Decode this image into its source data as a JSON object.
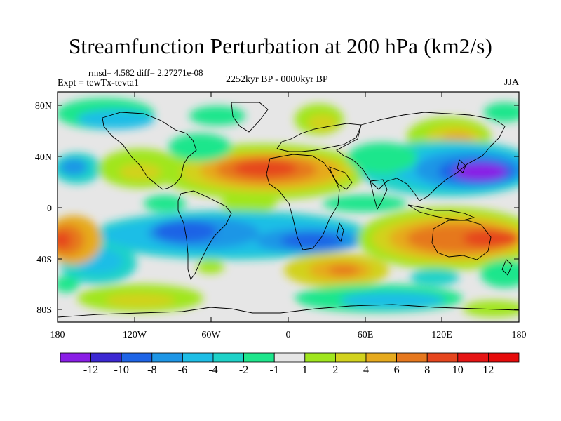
{
  "title": "Streamfunction Perturbation at 200 hPa (km2/s)",
  "stats": "rmsd= 4.582 diff= 2.27271e-08",
  "experiment": "Expt = tewTx-tevta1",
  "period": "2252kyr BP - 0000kyr BP",
  "season": "JJA",
  "longitude_ticks": [
    "180",
    "120W",
    "60W",
    "0",
    "60E",
    "120E",
    "180"
  ],
  "latitude_ticks": [
    "80N",
    "40N",
    "0",
    "40S",
    "80S"
  ],
  "colorbar": {
    "labels": [
      "-12",
      "-10",
      "-8",
      "-6",
      "-4",
      "-2",
      "-1",
      "1",
      "2",
      "4",
      "6",
      "8",
      "10",
      "12"
    ],
    "colors": [
      "#8a1ee6",
      "#3c28d2",
      "#1e64e6",
      "#1e96e6",
      "#1ebee6",
      "#1ed2c8",
      "#1ee68c",
      "#e6e6e6",
      "#a0e61e",
      "#d2d21e",
      "#e6aa1e",
      "#e6781e",
      "#e6461e",
      "#e61414",
      "#e60a0a"
    ]
  }
}
